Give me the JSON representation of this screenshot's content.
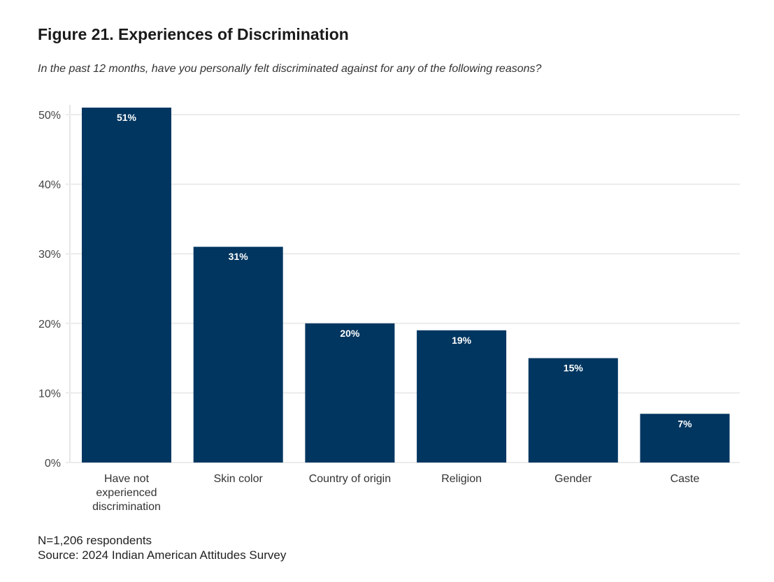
{
  "chart_data": {
    "type": "bar",
    "title": "Figure 21. Experiences of Discrimination",
    "subtitle": "In the past 12 months, have you personally felt discriminated against for any of the following reasons?",
    "categories": [
      "Have not experienced discrimination",
      "Skin color",
      "Country of origin",
      "Religion",
      "Gender",
      "Caste"
    ],
    "category_lines": [
      [
        "Have not",
        "experienced",
        "discrimination"
      ],
      [
        "Skin color"
      ],
      [
        "Country of origin"
      ],
      [
        "Religion"
      ],
      [
        "Gender"
      ],
      [
        "Caste"
      ]
    ],
    "values": [
      51,
      31,
      20,
      19,
      15,
      7
    ],
    "data_labels": [
      "51%",
      "31%",
      "20%",
      "19%",
      "15%",
      "7%"
    ],
    "yticks": [
      0,
      10,
      20,
      30,
      40,
      50
    ],
    "ytick_labels": [
      "0%",
      "10%",
      "20%",
      "30%",
      "40%",
      "50%"
    ],
    "ylim": [
      0,
      50
    ],
    "xlabel": "",
    "ylabel": "",
    "grid": true,
    "bar_color": "#003660",
    "label_color": "#ffffff"
  },
  "notes": {
    "n": "N=1,206 respondents",
    "source": "Source: 2024 Indian American Attitudes Survey"
  }
}
